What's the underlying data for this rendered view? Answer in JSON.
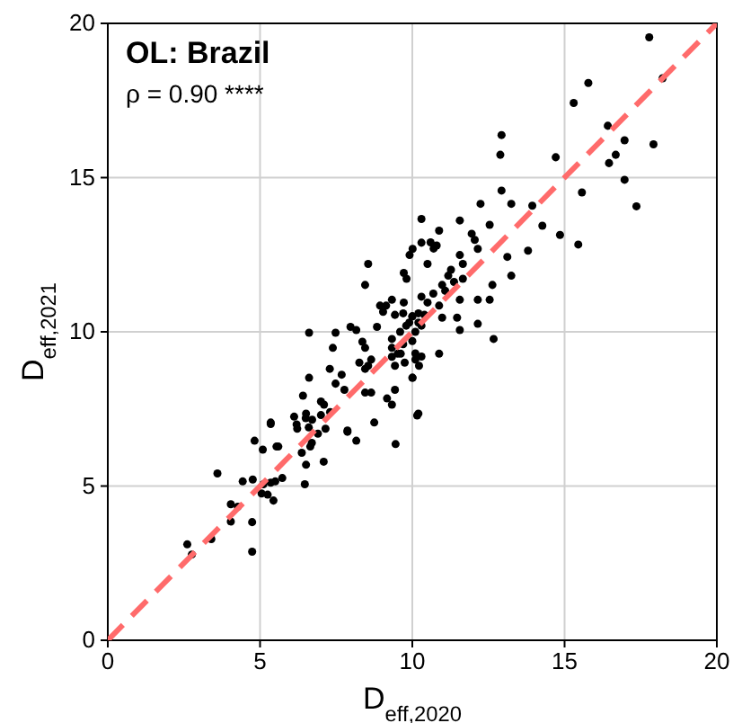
{
  "chart_data": {
    "type": "scatter",
    "title": "OL: Brazil",
    "annotations": [
      "ρ = 0.90 ****"
    ],
    "xlabel": "D$_{eff,2020}$",
    "ylabel": "D$_{eff,2021}$",
    "xlim": [
      0,
      20
    ],
    "ylim": [
      0,
      20
    ],
    "xticks": [
      0,
      5,
      10,
      15,
      20
    ],
    "yticks": [
      0,
      5,
      10,
      15,
      20
    ],
    "grid": true,
    "series": [
      {
        "type": "line",
        "color": "#ff6b6b",
        "line_style": "dashed",
        "marker": "none",
        "x": [
          0,
          20
        ],
        "values": [
          0,
          20
        ]
      },
      {
        "marker": "circle",
        "color": "#000000",
        "x": [
          2.61,
          2.76,
          3.4,
          3.6,
          4.74,
          4.74,
          4.04,
          4.04,
          4.27,
          4.43,
          4.76,
          5.11,
          5.35,
          5.5,
          5.73,
          5.05,
          5.25,
          5.44,
          6.47,
          4.82,
          5.35,
          5.09,
          5.54,
          6.2,
          6.5,
          6.6,
          6.9,
          6.7,
          6.37,
          6.51,
          7.09,
          6.65,
          7.15,
          7.87,
          8.16,
          7.0,
          7.3,
          5.35,
          5.6,
          6.12,
          6.22,
          6.51,
          6.71,
          6.41,
          6.61,
          7.0,
          7.1,
          7.29,
          7.48,
          7.68,
          7.77,
          7.39,
          7.48,
          7.97,
          8.16,
          8.36,
          8.45,
          8.26,
          8.45,
          8.65,
          8.84,
          9.14,
          9.43,
          9.33,
          9.33,
          9.62,
          9.75,
          10.01,
          9.17,
          8.65,
          8.75,
          7.87,
          9.33,
          10.2,
          9.72,
          10.0,
          10.2,
          9.9,
          10.3,
          6.61,
          8.55,
          8.45,
          10.3,
          10.3,
          10.88,
          11.56,
          12.24,
          12.93,
          13.25,
          12.54,
          10.6,
          10.8,
          10.7,
          11.95,
          12.05,
          12.15,
          11.56,
          11.66,
          11.27,
          11.18,
          11.37,
          11.66,
          10.98,
          9.91,
          10.01,
          10.5,
          9.72,
          9.81,
          11.08,
          11.56,
          12.15,
          12.54,
          13.12,
          13.25,
          13.8,
          12.63,
          8.94,
          9.04,
          9.33,
          10.3,
          10.5,
          10.69,
          10.88,
          10.4,
          9.7,
          10.0,
          9.8,
          10.1,
          10.2,
          9.6,
          10.0,
          9.7,
          10.98,
          11.47,
          11.56,
          12.15,
          12.67,
          10.88,
          10.1,
          10.1,
          10.3,
          9.52,
          9.33,
          9.43,
          10.0,
          8.55,
          8.45,
          9.43,
          17.78,
          18.22,
          15.78,
          15.3,
          16.42,
          16.97,
          17.92,
          16.68,
          16.46,
          16.97,
          14.71,
          15.57,
          17.36,
          14.27,
          14.85,
          15.45,
          12.93,
          12.89,
          13.94,
          10.22,
          10.16,
          9.45
        ],
        "values": [
          3.11,
          2.78,
          3.28,
          5.41,
          2.87,
          3.83,
          3.85,
          4.41,
          4.33,
          5.15,
          5.21,
          5.06,
          5.11,
          5.15,
          5.26,
          4.76,
          4.72,
          4.53,
          5.06,
          6.47,
          7.01,
          6.18,
          6.28,
          7.0,
          7.2,
          6.9,
          6.7,
          6.4,
          6.08,
          5.69,
          5.79,
          6.28,
          6.86,
          6.8,
          6.47,
          7.3,
          7.4,
          7.06,
          6.28,
          7.25,
          6.86,
          7.35,
          7.15,
          7.93,
          8.51,
          7.74,
          7.64,
          8.8,
          8.32,
          8.61,
          8.12,
          9.48,
          9.97,
          10.16,
          10.06,
          9.68,
          9.48,
          9.0,
          8.8,
          9.1,
          10.16,
          10.85,
          10.55,
          9.77,
          9.48,
          9.29,
          9.0,
          8.51,
          7.84,
          8.03,
          7.06,
          6.76,
          7.64,
          7.35,
          10.95,
          10.5,
          10.6,
          10.3,
          10.2,
          9.97,
          12.2,
          11.52,
          13.66,
          12.89,
          13.28,
          13.61,
          14.15,
          14.58,
          14.15,
          13.47,
          12.9,
          12.8,
          12.7,
          13.18,
          12.98,
          12.69,
          12.49,
          12.2,
          12.01,
          11.82,
          11.62,
          11.72,
          11.52,
          12.49,
          12.69,
          12.2,
          11.91,
          11.72,
          11.33,
          11.04,
          11.04,
          11.04,
          12.43,
          11.82,
          12.63,
          11.52,
          10.85,
          10.65,
          11.04,
          11.14,
          10.95,
          11.24,
          10.85,
          10.55,
          10.6,
          10.5,
          10.2,
          10.0,
          10.3,
          10.0,
          9.7,
          9.6,
          10.46,
          10.46,
          10.06,
          10.26,
          9.77,
          9.29,
          9.1,
          9.3,
          9.2,
          9.29,
          9.19,
          8.9,
          8.51,
          8.9,
          8.03,
          8.12,
          19.55,
          18.22,
          18.07,
          17.42,
          16.68,
          16.21,
          16.08,
          15.74,
          15.47,
          14.93,
          15.66,
          14.52,
          14.07,
          13.44,
          13.14,
          12.83,
          16.38,
          15.74,
          14.09,
          8.9,
          7.29,
          6.36
        ]
      }
    ]
  }
}
